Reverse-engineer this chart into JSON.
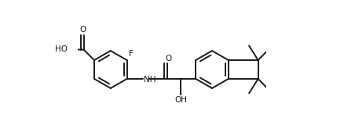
{
  "background_color": "#ffffff",
  "line_color": "#1a1a1a",
  "line_width": 1.4,
  "figsize": [
    4.38,
    1.78
  ],
  "dpi": 100,
  "font_size": 7.5,
  "xlim": [
    0.0,
    0.95
  ],
  "ylim": [
    0.15,
    0.85
  ]
}
